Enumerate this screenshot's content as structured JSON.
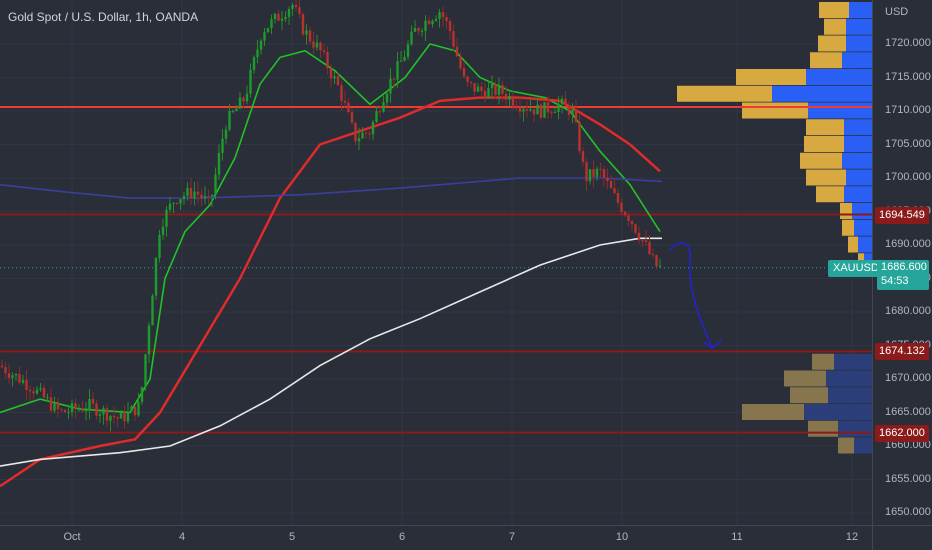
{
  "header": {
    "title": "Gold Spot / U.S. Dollar, 1h, OANDA"
  },
  "axis": {
    "currency": "USD"
  },
  "chart_data": {
    "type": "candlestick",
    "title": "Gold Spot / U.S. Dollar, 1h, OANDA",
    "symbol": "XAUUSD",
    "ylim": [
      1648,
      1728
    ],
    "y_ticks": [
      "1650.000",
      "1655.000",
      "1660.000",
      "1665.000",
      "1670.000",
      "1675.000",
      "1680.000",
      "1685.000",
      "1690.000",
      "1695.000",
      "1700.000",
      "1705.000",
      "1710.000",
      "1715.000",
      "1720.000",
      "USD"
    ],
    "x_ticks": [
      "Oct",
      "4",
      "5",
      "6",
      "7",
      "10",
      "11",
      "12"
    ],
    "current_price": {
      "symbol": "XAUUSD",
      "price": "1686.600",
      "countdown": "54:53",
      "value": 1686.6,
      "color": "#26a69a"
    },
    "horizontal_levels": [
      {
        "label": "1694.549",
        "value": 1694.549,
        "color": "#8b1a1a"
      },
      {
        "label": "1674.132",
        "value": 1674.132,
        "color": "#8b1a1a"
      },
      {
        "label": "1662.000",
        "value": 1662.0,
        "color": "#8b1a1a"
      },
      {
        "label": "",
        "value": 1710.6,
        "color": "#ef3b33"
      }
    ],
    "price_path": [
      [
        0,
        1672
      ],
      [
        30,
        1669
      ],
      [
        60,
        1665
      ],
      [
        90,
        1666
      ],
      [
        120,
        1664
      ],
      [
        140,
        1666
      ],
      [
        150,
        1680
      ],
      [
        160,
        1693
      ],
      [
        175,
        1697
      ],
      [
        195,
        1698
      ],
      [
        210,
        1696
      ],
      [
        225,
        1708
      ],
      [
        245,
        1712
      ],
      [
        262,
        1722
      ],
      [
        278,
        1724
      ],
      [
        292,
        1726
      ],
      [
        304,
        1722
      ],
      [
        320,
        1719
      ],
      [
        340,
        1713
      ],
      [
        355,
        1706
      ],
      [
        370,
        1707
      ],
      [
        385,
        1713
      ],
      [
        400,
        1717
      ],
      [
        415,
        1722
      ],
      [
        430,
        1724
      ],
      [
        440,
        1725
      ],
      [
        450,
        1722
      ],
      [
        465,
        1714
      ],
      [
        480,
        1713
      ],
      [
        500,
        1713
      ],
      [
        520,
        1711
      ],
      [
        540,
        1710
      ],
      [
        560,
        1711
      ],
      [
        572,
        1710
      ],
      [
        578,
        1706
      ],
      [
        585,
        1700
      ],
      [
        600,
        1701
      ],
      [
        615,
        1697
      ],
      [
        630,
        1694
      ],
      [
        645,
        1690
      ],
      [
        655,
        1687
      ],
      [
        660,
        1686.6
      ]
    ],
    "moving_averages": [
      {
        "color": "#21c226",
        "points": [
          [
            0,
            1665
          ],
          [
            40,
            1667
          ],
          [
            80,
            1665.5
          ],
          [
            130,
            1665
          ],
          [
            150,
            1670
          ],
          [
            165,
            1685
          ],
          [
            185,
            1692
          ],
          [
            210,
            1696
          ],
          [
            235,
            1703
          ],
          [
            260,
            1714
          ],
          [
            280,
            1718
          ],
          [
            305,
            1719
          ],
          [
            335,
            1716
          ],
          [
            370,
            1711
          ],
          [
            405,
            1715
          ],
          [
            430,
            1720
          ],
          [
            455,
            1719
          ],
          [
            480,
            1715
          ],
          [
            510,
            1713
          ],
          [
            545,
            1712
          ],
          [
            570,
            1710
          ],
          [
            600,
            1704
          ],
          [
            630,
            1699
          ],
          [
            660,
            1692
          ]
        ]
      },
      {
        "color": "#e02b2b",
        "points": [
          [
            0,
            1654
          ],
          [
            40,
            1658
          ],
          [
            100,
            1660
          ],
          [
            135,
            1661
          ],
          [
            160,
            1665
          ],
          [
            200,
            1675
          ],
          [
            240,
            1685
          ],
          [
            280,
            1697
          ],
          [
            320,
            1705
          ],
          [
            360,
            1707
          ],
          [
            400,
            1709
          ],
          [
            440,
            1711.5
          ],
          [
            480,
            1712
          ],
          [
            520,
            1712
          ],
          [
            560,
            1711.5
          ],
          [
            600,
            1708
          ],
          [
            630,
            1705
          ],
          [
            660,
            1701
          ]
        ]
      },
      {
        "color": "#3b3f9c",
        "points": [
          [
            0,
            1699
          ],
          [
            60,
            1698
          ],
          [
            130,
            1697
          ],
          [
            200,
            1697
          ],
          [
            300,
            1697.5
          ],
          [
            400,
            1698.5
          ],
          [
            520,
            1700
          ],
          [
            600,
            1700
          ],
          [
            662,
            1699.5
          ]
        ]
      },
      {
        "color": "#e8e8e8",
        "points": [
          [
            0,
            1657
          ],
          [
            40,
            1658
          ],
          [
            120,
            1659
          ],
          [
            170,
            1660
          ],
          [
            220,
            1663
          ],
          [
            270,
            1667
          ],
          [
            320,
            1672
          ],
          [
            370,
            1676
          ],
          [
            420,
            1679
          ],
          [
            480,
            1683
          ],
          [
            540,
            1687
          ],
          [
            600,
            1690
          ],
          [
            640,
            1691
          ],
          [
            662,
            1691
          ]
        ]
      }
    ],
    "forecast_arrow_color": "#2323cc",
    "volume_profile": [
      {
        "price": 1725,
        "up": 30,
        "down": 23
      },
      {
        "price": 1722.5,
        "up": 22,
        "down": 26
      },
      {
        "price": 1720,
        "up": 28,
        "down": 26
      },
      {
        "price": 1717.5,
        "up": 32,
        "down": 30
      },
      {
        "price": 1715,
        "up": 70,
        "down": 66
      },
      {
        "price": 1712.5,
        "up": 95,
        "down": 100
      },
      {
        "price": 1710,
        "up": 66,
        "down": 64
      },
      {
        "price": 1707.5,
        "up": 38,
        "down": 28
      },
      {
        "price": 1705,
        "up": 40,
        "down": 28
      },
      {
        "price": 1702.5,
        "up": 42,
        "down": 30
      },
      {
        "price": 1700,
        "up": 40,
        "down": 26
      },
      {
        "price": 1697.5,
        "up": 28,
        "down": 28
      },
      {
        "price": 1695,
        "up": 12,
        "down": 20
      },
      {
        "price": 1692.5,
        "up": 12,
        "down": 18
      },
      {
        "price": 1690,
        "up": 10,
        "down": 14
      },
      {
        "price": 1687.5,
        "up": 6,
        "down": 8
      },
      {
        "price": 1672.5,
        "up": 22,
        "down": 38
      },
      {
        "price": 1670,
        "up": 42,
        "down": 46
      },
      {
        "price": 1667.5,
        "up": 38,
        "down": 44
      },
      {
        "price": 1665,
        "up": 62,
        "down": 68
      },
      {
        "price": 1662.5,
        "up": 30,
        "down": 34
      },
      {
        "price": 1660,
        "up": 16,
        "down": 18
      }
    ],
    "volume_profile_colors": {
      "up_top": "#e0b040",
      "down_top": "#2962ff",
      "up_bottom": "#8c7a4e",
      "down_bottom": "#2b3f7c"
    }
  }
}
